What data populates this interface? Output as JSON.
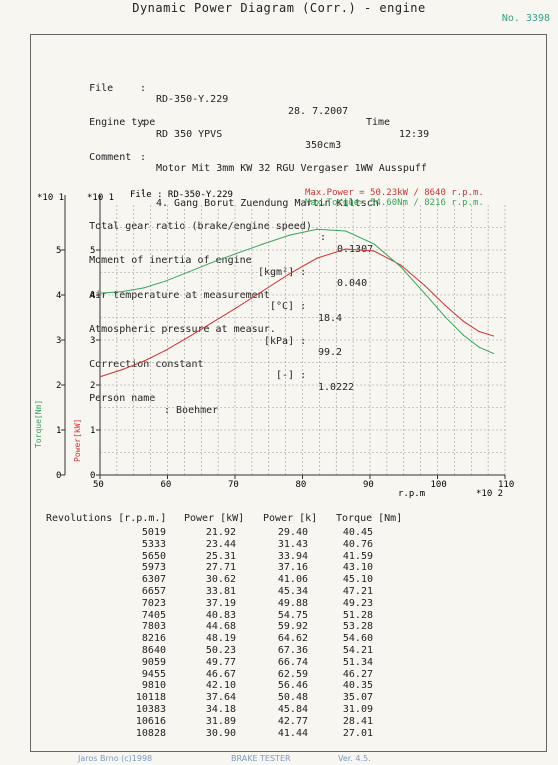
{
  "header": {
    "title": "Dynamic Power Diagram  (Corr.)  - engine",
    "doc_number": "No. 3398"
  },
  "info": {
    "file_label": "File",
    "file_value": "RD-350-Y.229",
    "date": "28. 7.2007",
    "time_label": "Time",
    "time_value": "12:39",
    "engine_label": "Engine type",
    "engine_value": "RD 350 YPVS",
    "engine_cc": "350cm3",
    "comment_label": "Comment",
    "comment_1": "Motor Mit 3mm KW 32 RGU Vergaser 1WW Ausspuff",
    "comment_2": "4. Gang Borut Zuendung Martin Kiltsch",
    "gear_label": "Total gear ratio (brake/engine speed)",
    "gear_unit": ":",
    "gear_value": "0.1307",
    "inertia_label": "Moment of inertia of engine",
    "inertia_unit": "[kgm²] :",
    "inertia_value": "0.040",
    "air_label": "Air temperature at measurement",
    "air_unit": "[°C] :",
    "air_value": "18.4",
    "press_label": "Atmospheric pressure at measur.",
    "press_unit": "[kPa] :",
    "press_value": "99.2",
    "corr_label": "Correction constant",
    "corr_unit": "[-] :",
    "corr_value": "1.0222",
    "person_label": "Person name",
    "person_value": ": Boehmer"
  },
  "chart_data": {
    "type": "line",
    "file_label": "File : RD-350-Y.229",
    "max_power": "Max.Power = 50.23kW /  8640 r.p.m.",
    "max_torque": "Max.Torque= 54.60Nm /  8216 r.p.m.",
    "xlabel": "r.p.m",
    "x_scale": "*10 2",
    "y_scale_left": "*10 1",
    "y_scale_right": "*10 1",
    "ylabel_torque": "Torque[Nm]",
    "ylabel_power": "Power[kW]",
    "x_ticks": [
      "50",
      "60",
      "70",
      "80",
      "90",
      "100",
      "110"
    ],
    "y_ticks": [
      "0",
      "1",
      "2",
      "3",
      "4",
      "5"
    ],
    "xlim": [
      50,
      110
    ],
    "ylim": [
      0,
      60
    ],
    "power_color": "#cc3333",
    "torque_color": "#3aa55a",
    "series": [
      {
        "name": "Power [kW]",
        "color": "#cc3333",
        "x": [
          5019,
          5333,
          5650,
          5973,
          6307,
          6657,
          7023,
          7405,
          7803,
          8216,
          8640,
          9059,
          9455,
          9810,
          10118,
          10383,
          10616,
          10828
        ],
        "y": [
          21.92,
          23.44,
          25.31,
          27.71,
          30.62,
          33.81,
          37.19,
          40.83,
          44.68,
          48.19,
          50.23,
          49.77,
          46.67,
          42.1,
          37.64,
          34.18,
          31.89,
          30.9
        ]
      },
      {
        "name": "Torque [Nm]",
        "color": "#3aa55a",
        "x": [
          5019,
          5333,
          5650,
          5973,
          6307,
          6657,
          7023,
          7405,
          7803,
          8216,
          8640,
          9059,
          9455,
          9810,
          10118,
          10383,
          10616,
          10828
        ],
        "y": [
          40.45,
          40.76,
          41.59,
          43.1,
          45.1,
          47.21,
          49.23,
          51.28,
          53.28,
          54.6,
          54.21,
          51.34,
          46.27,
          40.35,
          35.07,
          31.09,
          28.41,
          27.01
        ]
      }
    ]
  },
  "table": {
    "headers": [
      "Revolutions [r.p.m.]",
      "Power [kW]",
      "Power [k]",
      "Torque [Nm]"
    ],
    "rows": [
      [
        "5019",
        "21.92",
        "29.40",
        "40.45"
      ],
      [
        "5333",
        "23.44",
        "31.43",
        "40.76"
      ],
      [
        "5650",
        "25.31",
        "33.94",
        "41.59"
      ],
      [
        "5973",
        "27.71",
        "37.16",
        "43.10"
      ],
      [
        "6307",
        "30.62",
        "41.06",
        "45.10"
      ],
      [
        "6657",
        "33.81",
        "45.34",
        "47.21"
      ],
      [
        "7023",
        "37.19",
        "49.88",
        "49.23"
      ],
      [
        "7405",
        "40.83",
        "54.75",
        "51.28"
      ],
      [
        "7803",
        "44.68",
        "59.92",
        "53.28"
      ],
      [
        "8216",
        "48.19",
        "64.62",
        "54.60"
      ],
      [
        "8640",
        "50.23",
        "67.36",
        "54.21"
      ],
      [
        "9059",
        "49.77",
        "66.74",
        "51.34"
      ],
      [
        "9455",
        "46.67",
        "62.59",
        "46.27"
      ],
      [
        "9810",
        "42.10",
        "56.46",
        "40.35"
      ],
      [
        "10118",
        "37.64",
        "50.48",
        "35.07"
      ],
      [
        "10383",
        "34.18",
        "45.84",
        "31.09"
      ],
      [
        "10616",
        "31.89",
        "42.77",
        "28.41"
      ],
      [
        "10828",
        "30.90",
        "41.44",
        "27.01"
      ]
    ]
  },
  "footer": {
    "left": "Jaros Brno (c)1998",
    "center": "BRAKE TESTER",
    "right": "Ver. 4.5."
  }
}
